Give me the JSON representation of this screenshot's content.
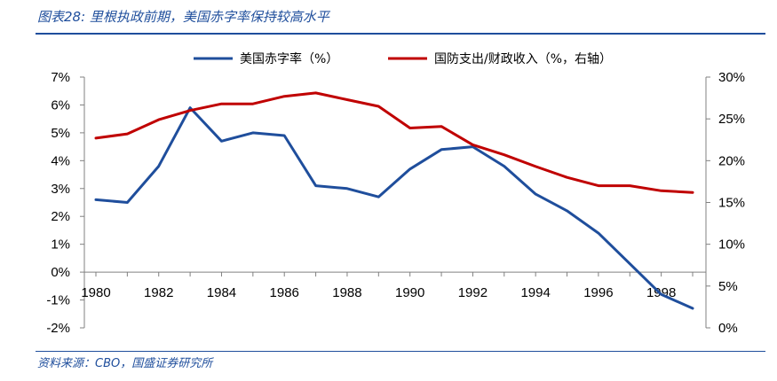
{
  "figure": {
    "title": "图表28: 里根执政前期，美国赤字率保持较高水平",
    "source": "资料来源：CBO，国盛证券研究所"
  },
  "chart_data": {
    "type": "line",
    "x": [
      1980,
      1981,
      1982,
      1983,
      1984,
      1985,
      1986,
      1987,
      1988,
      1989,
      1990,
      1991,
      1992,
      1993,
      1994,
      1995,
      1996,
      1997,
      1998,
      1999
    ],
    "x_tick_labels": [
      "1980",
      "1982",
      "1984",
      "1986",
      "1988",
      "1990",
      "1992",
      "1994",
      "1996",
      "1998"
    ],
    "series": [
      {
        "name": "美国赤字率（%）",
        "axis": "left",
        "color": "#1f4e9c",
        "values": [
          2.6,
          2.5,
          3.8,
          5.9,
          4.7,
          5.0,
          4.9,
          3.1,
          3.0,
          2.7,
          3.7,
          4.4,
          4.5,
          3.8,
          2.8,
          2.2,
          1.4,
          0.3,
          -0.8,
          -1.3
        ]
      },
      {
        "name": "国防支出/财政收入（%，右轴）",
        "axis": "right",
        "color": "#c00000",
        "values": [
          22.7,
          23.2,
          24.9,
          26.0,
          26.8,
          26.8,
          27.7,
          28.1,
          27.3,
          26.5,
          23.9,
          24.1,
          21.9,
          20.7,
          19.3,
          18.0,
          17.0,
          17.0,
          16.4,
          16.2
        ]
      }
    ],
    "y_left": {
      "min": -2,
      "max": 7,
      "step": 1,
      "tick_labels": [
        "-2%",
        "-1%",
        "0%",
        "1%",
        "2%",
        "3%",
        "4%",
        "5%",
        "6%",
        "7%"
      ]
    },
    "y_right": {
      "min": 0,
      "max": 30,
      "step": 5,
      "tick_labels": [
        "0%",
        "5%",
        "10%",
        "15%",
        "20%",
        "25%",
        "30%"
      ]
    },
    "legend_position": "top-center",
    "grid": false
  }
}
